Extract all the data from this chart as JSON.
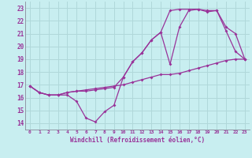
{
  "xlabel": "Windchill (Refroidissement éolien,°C)",
  "background_color": "#c8eef0",
  "grid_color": "#b0d8da",
  "line_color": "#993399",
  "xlim": [
    -0.5,
    23.5
  ],
  "ylim": [
    13.5,
    23.5
  ],
  "xticks": [
    0,
    1,
    2,
    3,
    4,
    5,
    6,
    7,
    8,
    9,
    10,
    11,
    12,
    13,
    14,
    15,
    16,
    17,
    18,
    19,
    20,
    21,
    22,
    23
  ],
  "yticks": [
    14,
    15,
    16,
    17,
    18,
    19,
    20,
    21,
    22,
    23
  ],
  "line1_x": [
    0,
    1,
    2,
    3,
    4,
    5,
    6,
    7,
    8,
    9,
    10,
    11,
    12,
    13,
    14,
    15,
    16,
    17,
    18,
    19,
    20,
    21,
    22,
    23
  ],
  "line1_y": [
    16.9,
    16.4,
    16.2,
    16.2,
    16.2,
    15.7,
    14.4,
    14.1,
    14.9,
    15.4,
    17.6,
    18.8,
    19.5,
    20.5,
    21.1,
    18.6,
    21.5,
    22.8,
    22.9,
    22.7,
    22.8,
    21.2,
    19.6,
    19.0
  ],
  "line2_x": [
    0,
    1,
    2,
    3,
    4,
    5,
    6,
    7,
    8,
    9,
    10,
    11,
    12,
    13,
    14,
    15,
    16,
    17,
    18,
    19,
    20,
    21,
    22,
    23
  ],
  "line2_y": [
    16.9,
    16.4,
    16.2,
    16.2,
    16.4,
    16.5,
    16.6,
    16.7,
    16.8,
    16.9,
    17.0,
    17.2,
    17.4,
    17.6,
    17.8,
    17.8,
    17.9,
    18.1,
    18.3,
    18.5,
    18.7,
    18.9,
    19.0,
    19.0
  ],
  "line3_x": [
    0,
    1,
    2,
    3,
    4,
    5,
    6,
    7,
    8,
    9,
    10,
    11,
    12,
    13,
    14,
    15,
    16,
    17,
    18,
    19,
    20,
    21,
    22,
    23
  ],
  "line3_y": [
    16.9,
    16.4,
    16.2,
    16.2,
    16.4,
    16.5,
    16.5,
    16.6,
    16.7,
    16.8,
    17.6,
    18.8,
    19.5,
    20.5,
    21.1,
    22.8,
    22.9,
    22.9,
    22.9,
    22.8,
    22.8,
    21.5,
    21.0,
    19.0
  ]
}
